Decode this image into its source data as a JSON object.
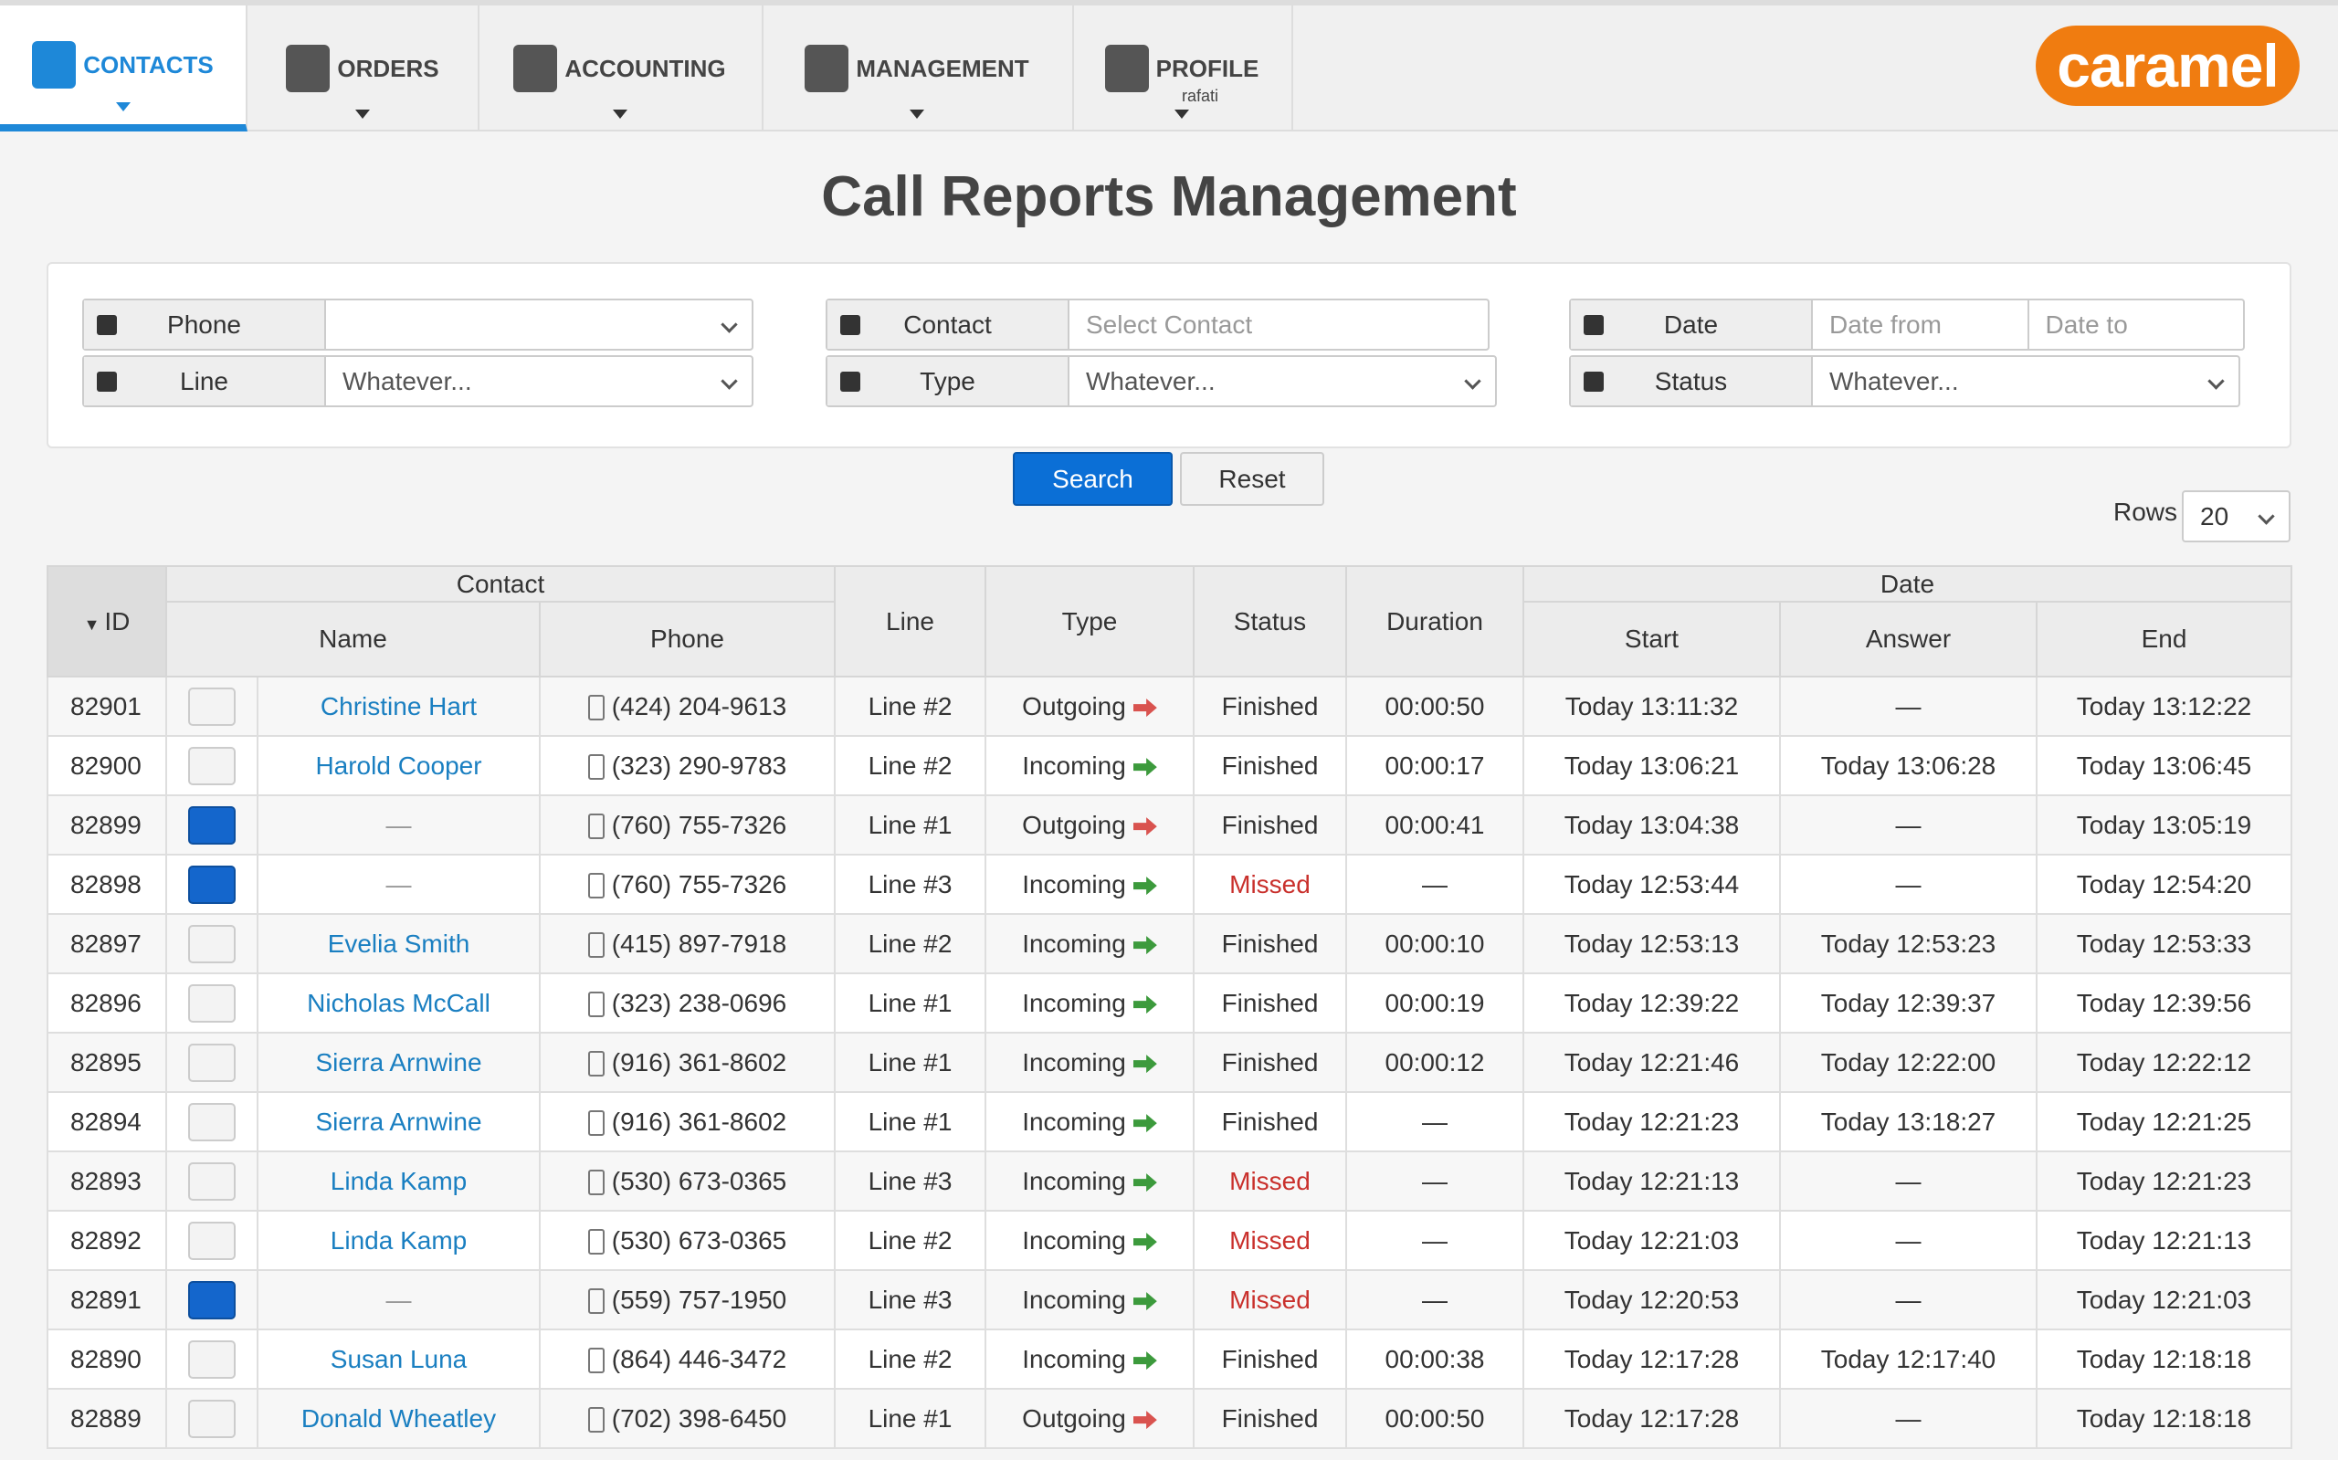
{
  "nav": {
    "items": [
      {
        "label": "CONTACTS"
      },
      {
        "label": "ORDERS"
      },
      {
        "label": "ACCOUNTING"
      },
      {
        "label": "MANAGEMENT"
      },
      {
        "label": "PROFILE",
        "sub": "rafati"
      }
    ],
    "logo": "caramel"
  },
  "title": "Call Reports Management",
  "filters": {
    "phone": {
      "label": "Phone"
    },
    "contact": {
      "label": "Contact",
      "placeholder": "Select Contact"
    },
    "date": {
      "label": "Date",
      "from": "Date from",
      "to": "Date to"
    },
    "line": {
      "label": "Line",
      "value": "Whatever..."
    },
    "type": {
      "label": "Type",
      "value": "Whatever..."
    },
    "status": {
      "label": "Status",
      "value": "Whatever..."
    }
  },
  "buttons": {
    "search": "Search",
    "reset": "Reset"
  },
  "rows_selector": {
    "label": "Rows",
    "value": "20"
  },
  "table": {
    "headers": {
      "id": "ID",
      "contact": "Contact",
      "name": "Name",
      "phone": "Phone",
      "line": "Line",
      "type": "Type",
      "status": "Status",
      "duration": "Duration",
      "date": "Date",
      "start": "Start",
      "answer": "Answer",
      "end": "End"
    },
    "rows": [
      {
        "id": "82901",
        "name": "Christine Hart",
        "phone": "(424) 204-9613",
        "line": "Line #2",
        "type": "Outgoing",
        "type_color": "#d9534f",
        "status": "Finished",
        "status_color": "#333333",
        "duration": "00:00:50",
        "start": "Today 13:11:32",
        "answer": "—",
        "end": "Today 13:12:22"
      },
      {
        "id": "82900",
        "name": "Harold Cooper",
        "phone": "(323) 290-9783",
        "line": "Line #2",
        "type": "Incoming",
        "type_color": "#3c9a3c",
        "status": "Finished",
        "status_color": "#333333",
        "duration": "00:00:17",
        "start": "Today 13:06:21",
        "answer": "Today 13:06:28",
        "end": "Today 13:06:45"
      },
      {
        "id": "82899",
        "name": "—",
        "phone": "(760) 755-7326",
        "line": "Line #1",
        "type": "Outgoing",
        "type_color": "#d9534f",
        "status": "Finished",
        "status_color": "#333333",
        "duration": "00:00:41",
        "start": "Today 13:04:38",
        "answer": "—",
        "end": "Today 13:05:19"
      },
      {
        "id": "82898",
        "name": "—",
        "phone": "(760) 755-7326",
        "line": "Line #3",
        "type": "Incoming",
        "type_color": "#3c9a3c",
        "status": "Missed",
        "status_color": "#c9302c",
        "duration": "—",
        "start": "Today 12:53:44",
        "answer": "—",
        "end": "Today 12:54:20"
      },
      {
        "id": "82897",
        "name": "Evelia Smith",
        "phone": "(415) 897-7918",
        "line": "Line #2",
        "type": "Incoming",
        "type_color": "#3c9a3c",
        "status": "Finished",
        "status_color": "#333333",
        "duration": "00:00:10",
        "start": "Today 12:53:13",
        "answer": "Today 12:53:23",
        "end": "Today 12:53:33"
      },
      {
        "id": "82896",
        "name": "Nicholas McCall",
        "phone": "(323) 238-0696",
        "line": "Line #1",
        "type": "Incoming",
        "type_color": "#3c9a3c",
        "status": "Finished",
        "status_color": "#333333",
        "duration": "00:00:19",
        "start": "Today 12:39:22",
        "answer": "Today 12:39:37",
        "end": "Today 12:39:56"
      },
      {
        "id": "82895",
        "name": "Sierra Arnwine",
        "phone": "(916) 361-8602",
        "line": "Line #1",
        "type": "Incoming",
        "type_color": "#3c9a3c",
        "status": "Finished",
        "status_color": "#333333",
        "duration": "00:00:12",
        "start": "Today 12:21:46",
        "answer": "Today 12:22:00",
        "end": "Today 12:22:12"
      },
      {
        "id": "82894",
        "name": "Sierra Arnwine",
        "phone": "(916) 361-8602",
        "line": "Line #1",
        "type": "Incoming",
        "type_color": "#3c9a3c",
        "status": "Finished",
        "status_color": "#333333",
        "duration": "—",
        "start": "Today 12:21:23",
        "answer": "Today 13:18:27",
        "end": "Today 12:21:25"
      },
      {
        "id": "82893",
        "name": "Linda Kamp",
        "phone": "(530) 673-0365",
        "line": "Line #3",
        "type": "Incoming",
        "type_color": "#3c9a3c",
        "status": "Missed",
        "status_color": "#c9302c",
        "duration": "—",
        "start": "Today 12:21:13",
        "answer": "—",
        "end": "Today 12:21:23"
      },
      {
        "id": "82892",
        "name": "Linda Kamp",
        "phone": "(530) 673-0365",
        "line": "Line #2",
        "type": "Incoming",
        "type_color": "#3c9a3c",
        "status": "Missed",
        "status_color": "#c9302c",
        "duration": "—",
        "start": "Today 12:21:03",
        "answer": "—",
        "end": "Today 12:21:13"
      },
      {
        "id": "82891",
        "name": "—",
        "phone": "(559) 757-1950",
        "line": "Line #3",
        "type": "Incoming",
        "type_color": "#3c9a3c",
        "status": "Missed",
        "status_color": "#c9302c",
        "duration": "—",
        "start": "Today 12:20:53",
        "answer": "—",
        "end": "Today 12:21:03"
      },
      {
        "id": "82890",
        "name": "Susan Luna",
        "phone": "(864) 446-3472",
        "line": "Line #2",
        "type": "Incoming",
        "type_color": "#3c9a3c",
        "status": "Finished",
        "status_color": "#333333",
        "duration": "00:00:38",
        "start": "Today 12:17:28",
        "answer": "Today 12:17:40",
        "end": "Today 12:18:18"
      },
      {
        "id": "82889",
        "name": "Donald Wheatley",
        "phone": "(702) 398-6450",
        "line": "Line #1",
        "type": "Outgoing",
        "type_color": "#d9534f",
        "status": "Finished",
        "status_color": "#333333",
        "duration": "00:00:50",
        "start": "Today 12:17:28",
        "answer": "—",
        "end": "Today 12:18:18"
      }
    ]
  }
}
